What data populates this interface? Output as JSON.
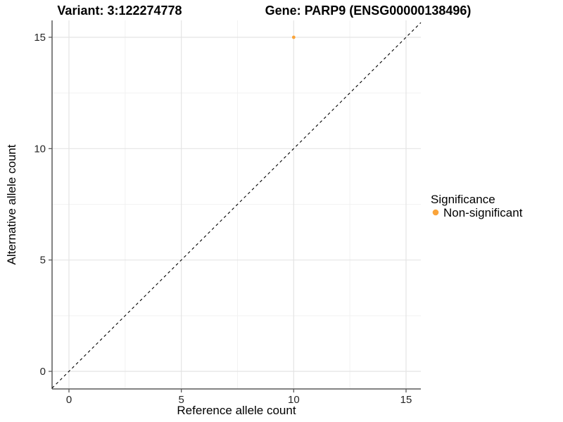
{
  "chart_data": {
    "type": "scatter",
    "titles": {
      "left": "Variant: 3:122274778",
      "right": "Gene: PARP9 (ENSG00000138496)"
    },
    "xlabel": "Reference allele count",
    "ylabel": "Alternative allele count",
    "x_ticks": [
      0,
      5,
      10,
      15
    ],
    "y_ticks": [
      0,
      5,
      10,
      15
    ],
    "x_minor_ticks": [
      2.5,
      7.5,
      12.5
    ],
    "y_minor_ticks": [
      2.5,
      7.5,
      12.5
    ],
    "xlim": [
      -0.75,
      15.66
    ],
    "ylim": [
      -0.79,
      15.76
    ],
    "grid": "major+minor",
    "background": "#ffffff",
    "series": [
      {
        "name": "Non-significant",
        "color": "#FAA43A",
        "points": [
          {
            "x": 10,
            "y": 15
          }
        ]
      }
    ],
    "reference_line": {
      "type": "identity",
      "slope": 1,
      "intercept": 0,
      "style": "dashed",
      "color": "#000000"
    },
    "legend": {
      "title": "Significance",
      "position": "right",
      "items": [
        {
          "label": "Non-significant",
          "color": "#FAA43A"
        }
      ]
    }
  }
}
